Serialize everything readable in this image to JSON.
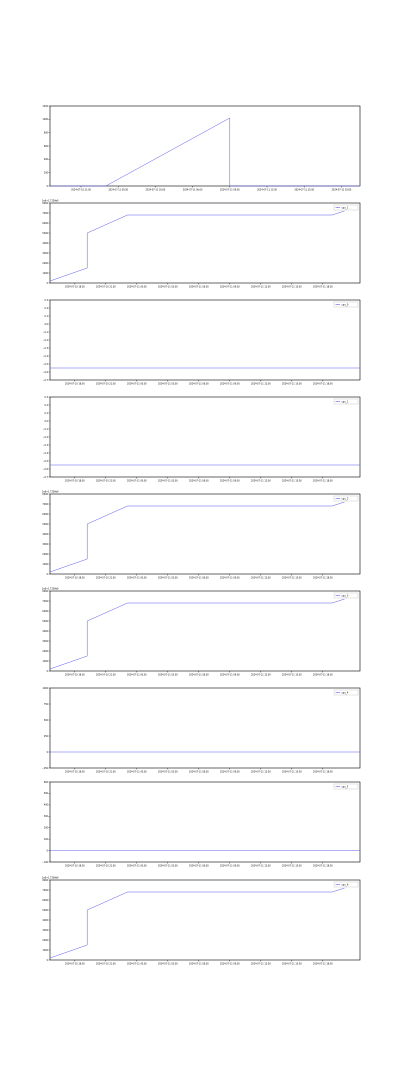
{
  "figure": {},
  "chart_data": [
    {
      "type": "line",
      "color": "#5b5bf0",
      "xlim": [
        0,
        10
      ],
      "ylim": [
        0,
        1200
      ],
      "yticks": [
        0,
        200,
        400,
        600,
        800,
        1000,
        1200
      ],
      "ytick_labels": [
        "0",
        "200",
        "400",
        "600",
        "800",
        "1000",
        "1200"
      ],
      "xticks": [
        1.0,
        2.2,
        3.4,
        4.6,
        5.8,
        7.0,
        8.2,
        9.4
      ],
      "xtick_labels": [
        "2024-07-10 21:00",
        "2024-07-11 00:00",
        "2024-07-11 03:00",
        "2024-07-11 06:00",
        "2024-07-11 09:00",
        "2024-07-11 12:00",
        "2024-07-11 15:00",
        "2024-07-11 18:00"
      ],
      "series": [
        {
          "name": "",
          "x": [
            0,
            1.8,
            5.8,
            5.8,
            10
          ],
          "y": [
            0,
            0,
            1020,
            0,
            0
          ]
        }
      ]
    },
    {
      "type": "line",
      "color": "#5b5bf0",
      "offset_label": "1e6+1.7209e9",
      "legend": "cpu_1",
      "xlim": [
        0,
        10
      ],
      "ylim": [
        0,
        800
      ],
      "yticks": [
        0,
        100,
        200,
        300,
        400,
        500,
        600,
        700,
        800
      ],
      "ytick_labels": [
        "0",
        "1000",
        "2000",
        "3000",
        "4000",
        "5000",
        "6000",
        "7000",
        "8000"
      ],
      "xticks": [
        0.8,
        1.8,
        2.8,
        3.8,
        4.8,
        5.8,
        6.8,
        7.8,
        8.8
      ],
      "xtick_labels": [
        "2024-07-10 18:00",
        "2024-07-10 21:00",
        "2024-07-11 00:00",
        "2024-07-11 03:00",
        "2024-07-11 06:00",
        "2024-07-11 09:00",
        "2024-07-11 12:00",
        "2024-07-11 15:00",
        "2024-07-11 18:00"
      ],
      "series": [
        {
          "name": "cpu_1",
          "x": [
            0,
            1.2,
            1.2,
            2.5,
            8.1,
            9.1,
            9.5
          ],
          "y": [
            20,
            150,
            500,
            680,
            680,
            680,
            720
          ]
        }
      ]
    },
    {
      "type": "line",
      "color": "#5b5bf0",
      "legend": "cpu_0",
      "xlim": [
        0,
        10
      ],
      "ylim": [
        -0.7,
        0.3
      ],
      "yticks": [
        -0.7,
        -0.6,
        -0.5,
        -0.4,
        -0.3,
        -0.2,
        -0.1,
        0.0,
        0.1,
        0.2,
        0.3
      ],
      "ytick_labels": [
        "−0.7",
        "−0.6",
        "−0.5",
        "−0.4",
        "−0.3",
        "−0.2",
        "−0.1",
        "0.0",
        "0.1",
        "0.2",
        "0.3"
      ],
      "xticks": [
        0.8,
        1.8,
        2.8,
        3.8,
        4.8,
        5.8,
        6.8,
        7.8,
        8.8
      ],
      "xtick_labels": [
        "2024-07-10 18:00",
        "2024-07-10 21:00",
        "2024-07-11 00:00",
        "2024-07-11 03:00",
        "2024-07-11 06:00",
        "2024-07-11 09:00",
        "2024-07-11 12:00",
        "2024-07-11 15:00",
        "2024-07-11 18:00"
      ],
      "series": [
        {
          "name": "cpu_0",
          "x": [
            0,
            2.5,
            8.1,
            10
          ],
          "y": [
            -0.55,
            -0.55,
            -0.55,
            -0.55
          ]
        }
      ]
    },
    {
      "type": "line",
      "color": "#5b5bf0",
      "legend": "cpu_1",
      "xlim": [
        0,
        10
      ],
      "ylim": [
        -0.7,
        0.3
      ],
      "yticks": [
        -0.7,
        -0.6,
        -0.5,
        -0.4,
        -0.3,
        -0.2,
        -0.1,
        0.0,
        0.1,
        0.2,
        0.3
      ],
      "ytick_labels": [
        "−0.7",
        "−0.6",
        "−0.5",
        "−0.4",
        "−0.3",
        "−0.2",
        "−0.1",
        "0.0",
        "0.1",
        "0.2",
        "0.3"
      ],
      "xticks": [
        0.8,
        1.8,
        2.8,
        3.8,
        4.8,
        5.8,
        6.8,
        7.8,
        8.8
      ],
      "xtick_labels": [
        "2024-07-10 18:00",
        "2024-07-10 21:00",
        "2024-07-11 00:00",
        "2024-07-11 03:00",
        "2024-07-11 06:00",
        "2024-07-11 09:00",
        "2024-07-11 12:00",
        "2024-07-11 15:00",
        "2024-07-11 18:00"
      ],
      "series": [
        {
          "name": "cpu_1",
          "x": [
            0,
            2.5,
            8.1,
            10
          ],
          "y": [
            -0.55,
            -0.55,
            -0.55,
            -0.55
          ]
        }
      ]
    },
    {
      "type": "line",
      "color": "#5b5bf0",
      "offset_label": "1e6+1.7209e9",
      "legend": "cpu_2",
      "xlim": [
        0,
        10
      ],
      "ylim": [
        0,
        800
      ],
      "yticks": [
        0,
        100,
        200,
        300,
        400,
        500,
        600,
        700,
        800
      ],
      "ytick_labels": [
        "0",
        "1000",
        "2000",
        "3000",
        "4000",
        "5000",
        "6000",
        "7000",
        "8000"
      ],
      "xticks": [
        0.8,
        1.8,
        2.8,
        3.8,
        4.8,
        5.8,
        6.8,
        7.8,
        8.8
      ],
      "xtick_labels": [
        "2024-07-10 18:00",
        "2024-07-10 21:00",
        "2024-07-11 00:00",
        "2024-07-11 03:00",
        "2024-07-11 06:00",
        "2024-07-11 09:00",
        "2024-07-11 12:00",
        "2024-07-11 15:00",
        "2024-07-11 18:00"
      ],
      "series": [
        {
          "name": "cpu_2",
          "x": [
            0,
            1.2,
            1.2,
            2.5,
            8.1,
            9.1,
            9.5
          ],
          "y": [
            20,
            150,
            500,
            680,
            680,
            680,
            720
          ]
        }
      ]
    },
    {
      "type": "line",
      "color": "#5b5bf0",
      "offset_label": "1e6+1.7209e9",
      "legend": "cpu_3",
      "xlim": [
        0,
        10
      ],
      "ylim": [
        0,
        800
      ],
      "yticks": [
        0,
        100,
        200,
        300,
        400,
        500,
        600,
        700,
        800
      ],
      "ytick_labels": [
        "0",
        "1000",
        "2000",
        "3000",
        "4000",
        "5000",
        "6000",
        "7000",
        "8000"
      ],
      "xticks": [
        0.8,
        1.8,
        2.8,
        3.8,
        4.8,
        5.8,
        6.8,
        7.8,
        8.8
      ],
      "xtick_labels": [
        "2024-07-10 18:00",
        "2024-07-10 21:00",
        "2024-07-11 00:00",
        "2024-07-11 03:00",
        "2024-07-11 06:00",
        "2024-07-11 09:00",
        "2024-07-11 12:00",
        "2024-07-11 15:00",
        "2024-07-11 18:00"
      ],
      "series": [
        {
          "name": "cpu_3",
          "x": [
            0,
            1.2,
            1.2,
            2.5,
            8.1,
            9.1,
            9.5
          ],
          "y": [
            20,
            150,
            500,
            680,
            680,
            680,
            720
          ]
        }
      ]
    },
    {
      "type": "line",
      "color": "#5b5bf0",
      "legend": "cpu_4",
      "xlim": [
        0,
        10
      ],
      "ylim": [
        -250,
        1000
      ],
      "yticks": [
        -250,
        0,
        250,
        500,
        750,
        1000
      ],
      "ytick_labels": [
        "−250",
        "0",
        "250",
        "500",
        "750",
        "1000"
      ],
      "xticks": [
        0.8,
        1.8,
        2.8,
        3.8,
        4.8,
        5.8,
        6.8,
        7.8,
        8.8
      ],
      "xtick_labels": [
        "2024-07-10 18:00",
        "2024-07-10 21:00",
        "2024-07-11 00:00",
        "2024-07-11 03:00",
        "2024-07-11 06:00",
        "2024-07-11 09:00",
        "2024-07-11 12:00",
        "2024-07-11 15:00",
        "2024-07-11 18:00"
      ],
      "series": [
        {
          "name": "cpu_4",
          "x": [
            0,
            10
          ],
          "y": [
            0,
            0
          ]
        }
      ]
    },
    {
      "type": "line",
      "color": "#5b5bf0",
      "legend": "cpu_5",
      "xlim": [
        0,
        10
      ],
      "ylim": [
        -100,
        600
      ],
      "yticks": [
        -100,
        0,
        100,
        200,
        300,
        400,
        500,
        600
      ],
      "ytick_labels": [
        "−100",
        "0",
        "100",
        "200",
        "300",
        "400",
        "500",
        "600"
      ],
      "xticks": [
        0.8,
        1.8,
        2.8,
        3.8,
        4.8,
        5.8,
        6.8,
        7.8,
        8.8
      ],
      "xtick_labels": [
        "2024-07-10 18:00",
        "2024-07-10 21:00",
        "2024-07-11 00:00",
        "2024-07-11 03:00",
        "2024-07-11 06:00",
        "2024-07-11 09:00",
        "2024-07-11 12:00",
        "2024-07-11 15:00",
        "2024-07-11 18:00"
      ],
      "series": [
        {
          "name": "cpu_5",
          "x": [
            0,
            10
          ],
          "y": [
            0,
            0
          ]
        }
      ]
    },
    {
      "type": "line",
      "color": "#5b5bf0",
      "offset_label": "1e6+1.7209e9",
      "legend": "cpu_6",
      "xlim": [
        0,
        10
      ],
      "ylim": [
        0,
        800
      ],
      "yticks": [
        0,
        100,
        200,
        300,
        400,
        500,
        600,
        700,
        800
      ],
      "ytick_labels": [
        "0",
        "1000",
        "2000",
        "3000",
        "4000",
        "5000",
        "6000",
        "7000",
        "8000"
      ],
      "xticks": [
        0.8,
        1.8,
        2.8,
        3.8,
        4.8,
        5.8,
        6.8,
        7.8,
        8.8
      ],
      "xtick_labels": [
        "2024-07-10 18:00",
        "2024-07-10 21:00",
        "2024-07-11 00:00",
        "2024-07-11 03:00",
        "2024-07-11 06:00",
        "2024-07-11 09:00",
        "2024-07-11 12:00",
        "2024-07-11 15:00",
        "2024-07-11 18:00"
      ],
      "series": [
        {
          "name": "cpu_6",
          "x": [
            0,
            1.2,
            1.2,
            2.5,
            8.1,
            9.1,
            9.5
          ],
          "y": [
            20,
            150,
            500,
            680,
            680,
            680,
            720
          ]
        }
      ]
    }
  ]
}
